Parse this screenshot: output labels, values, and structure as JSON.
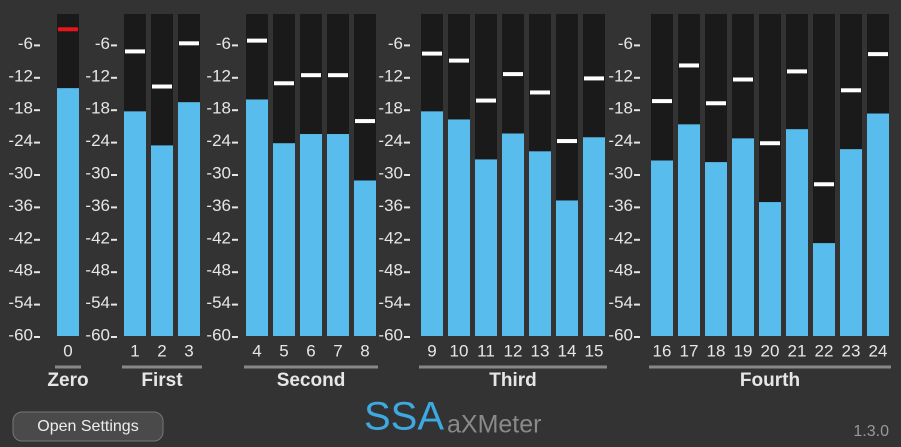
{
  "meters": {
    "ylim": [
      -60,
      0
    ],
    "scale": [
      -6,
      -12,
      -18,
      -24,
      -30,
      -36,
      -42,
      -48,
      -54,
      -60
    ],
    "groups": [
      {
        "name": "Zero",
        "channels": [
          {
            "label": 0,
            "level": -14.1,
            "peak": -3.2,
            "peak_color": "#e8161b"
          }
        ]
      },
      {
        "name": "First",
        "channels": [
          {
            "label": 1,
            "level": -18.4,
            "peak": -7.3
          },
          {
            "label": 2,
            "level": -24.7,
            "peak": -13.8
          },
          {
            "label": 3,
            "level": -16.7,
            "peak": -5.8
          }
        ]
      },
      {
        "name": "Second",
        "channels": [
          {
            "label": 4,
            "level": -16.2,
            "peak": -5.3
          },
          {
            "label": 5,
            "level": -24.3,
            "peak": -13.2
          },
          {
            "label": 6,
            "level": -22.6,
            "peak": -11.7
          },
          {
            "label": 7,
            "level": -22.6,
            "peak": -11.7
          },
          {
            "label": 8,
            "level": -31.2,
            "peak": -20.2
          }
        ]
      },
      {
        "name": "Third",
        "channels": [
          {
            "label": 9,
            "level": -18.4,
            "peak": -7.7
          },
          {
            "label": 10,
            "level": -19.9,
            "peak": -9.0
          },
          {
            "label": 11,
            "level": -27.3,
            "peak": -16.4
          },
          {
            "label": 12,
            "level": -22.5,
            "peak": -11.5
          },
          {
            "label": 13,
            "level": -25.8,
            "peak": -14.9
          },
          {
            "label": 14,
            "level": -34.9,
            "peak": -23.9
          },
          {
            "label": 15,
            "level": -23.2,
            "peak": -12.3
          }
        ]
      },
      {
        "name": "Fourth",
        "channels": [
          {
            "label": 16,
            "level": -27.5,
            "peak": -16.5
          },
          {
            "label": 17,
            "level": -20.8,
            "peak": -9.9
          },
          {
            "label": 18,
            "level": -27.8,
            "peak": -16.9
          },
          {
            "label": 19,
            "level": -23.4,
            "peak": -12.5
          },
          {
            "label": 20,
            "level": -35.2,
            "peak": -24.3
          },
          {
            "label": 21,
            "level": -21.7,
            "peak": -11.0
          },
          {
            "label": 22,
            "level": -42.8,
            "peak": -31.9
          },
          {
            "label": 23,
            "level": -25.4,
            "peak": -14.5
          },
          {
            "label": 24,
            "level": -18.8,
            "peak": -7.8
          }
        ]
      }
    ]
  },
  "footer": {
    "button": "Open Settings",
    "logo_main": "SSA",
    "logo_sub": "aXMeter",
    "version": "1.3.0"
  }
}
